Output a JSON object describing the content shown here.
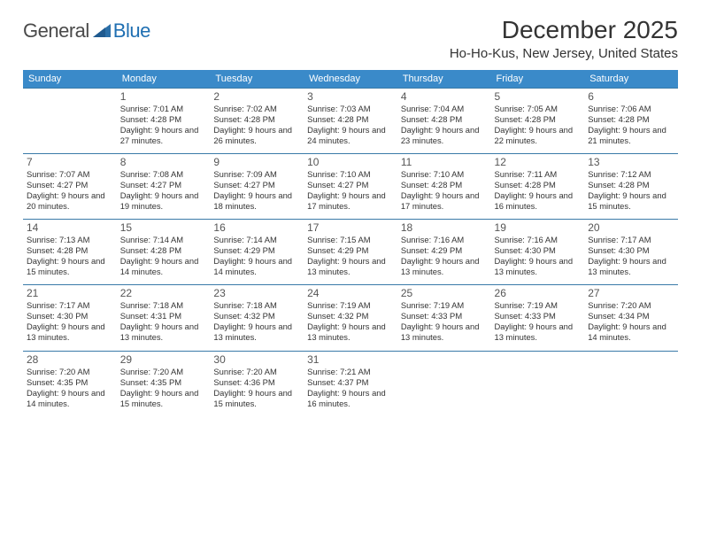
{
  "logo": {
    "word1": "General",
    "word2": "Blue"
  },
  "title": "December 2025",
  "location": "Ho-Ho-Kus, New Jersey, United States",
  "day_headers": [
    "Sunday",
    "Monday",
    "Tuesday",
    "Wednesday",
    "Thursday",
    "Friday",
    "Saturday"
  ],
  "colors": {
    "header_bg": "#3a8ac9",
    "header_text": "#ffffff",
    "border": "#3a7aa8",
    "logo_gray": "#4a4a4a",
    "logo_blue": "#1f6fb2",
    "arrow_fill": "#2b6fa8"
  },
  "weeks": [
    [
      null,
      {
        "n": "1",
        "sr": "7:01 AM",
        "ss": "4:28 PM",
        "dl": "9 hours and 27 minutes."
      },
      {
        "n": "2",
        "sr": "7:02 AM",
        "ss": "4:28 PM",
        "dl": "9 hours and 26 minutes."
      },
      {
        "n": "3",
        "sr": "7:03 AM",
        "ss": "4:28 PM",
        "dl": "9 hours and 24 minutes."
      },
      {
        "n": "4",
        "sr": "7:04 AM",
        "ss": "4:28 PM",
        "dl": "9 hours and 23 minutes."
      },
      {
        "n": "5",
        "sr": "7:05 AM",
        "ss": "4:28 PM",
        "dl": "9 hours and 22 minutes."
      },
      {
        "n": "6",
        "sr": "7:06 AM",
        "ss": "4:28 PM",
        "dl": "9 hours and 21 minutes."
      }
    ],
    [
      {
        "n": "7",
        "sr": "7:07 AM",
        "ss": "4:27 PM",
        "dl": "9 hours and 20 minutes."
      },
      {
        "n": "8",
        "sr": "7:08 AM",
        "ss": "4:27 PM",
        "dl": "9 hours and 19 minutes."
      },
      {
        "n": "9",
        "sr": "7:09 AM",
        "ss": "4:27 PM",
        "dl": "9 hours and 18 minutes."
      },
      {
        "n": "10",
        "sr": "7:10 AM",
        "ss": "4:27 PM",
        "dl": "9 hours and 17 minutes."
      },
      {
        "n": "11",
        "sr": "7:10 AM",
        "ss": "4:28 PM",
        "dl": "9 hours and 17 minutes."
      },
      {
        "n": "12",
        "sr": "7:11 AM",
        "ss": "4:28 PM",
        "dl": "9 hours and 16 minutes."
      },
      {
        "n": "13",
        "sr": "7:12 AM",
        "ss": "4:28 PM",
        "dl": "9 hours and 15 minutes."
      }
    ],
    [
      {
        "n": "14",
        "sr": "7:13 AM",
        "ss": "4:28 PM",
        "dl": "9 hours and 15 minutes."
      },
      {
        "n": "15",
        "sr": "7:14 AM",
        "ss": "4:28 PM",
        "dl": "9 hours and 14 minutes."
      },
      {
        "n": "16",
        "sr": "7:14 AM",
        "ss": "4:29 PM",
        "dl": "9 hours and 14 minutes."
      },
      {
        "n": "17",
        "sr": "7:15 AM",
        "ss": "4:29 PM",
        "dl": "9 hours and 13 minutes."
      },
      {
        "n": "18",
        "sr": "7:16 AM",
        "ss": "4:29 PM",
        "dl": "9 hours and 13 minutes."
      },
      {
        "n": "19",
        "sr": "7:16 AM",
        "ss": "4:30 PM",
        "dl": "9 hours and 13 minutes."
      },
      {
        "n": "20",
        "sr": "7:17 AM",
        "ss": "4:30 PM",
        "dl": "9 hours and 13 minutes."
      }
    ],
    [
      {
        "n": "21",
        "sr": "7:17 AM",
        "ss": "4:30 PM",
        "dl": "9 hours and 13 minutes."
      },
      {
        "n": "22",
        "sr": "7:18 AM",
        "ss": "4:31 PM",
        "dl": "9 hours and 13 minutes."
      },
      {
        "n": "23",
        "sr": "7:18 AM",
        "ss": "4:32 PM",
        "dl": "9 hours and 13 minutes."
      },
      {
        "n": "24",
        "sr": "7:19 AM",
        "ss": "4:32 PM",
        "dl": "9 hours and 13 minutes."
      },
      {
        "n": "25",
        "sr": "7:19 AM",
        "ss": "4:33 PM",
        "dl": "9 hours and 13 minutes."
      },
      {
        "n": "26",
        "sr": "7:19 AM",
        "ss": "4:33 PM",
        "dl": "9 hours and 13 minutes."
      },
      {
        "n": "27",
        "sr": "7:20 AM",
        "ss": "4:34 PM",
        "dl": "9 hours and 14 minutes."
      }
    ],
    [
      {
        "n": "28",
        "sr": "7:20 AM",
        "ss": "4:35 PM",
        "dl": "9 hours and 14 minutes."
      },
      {
        "n": "29",
        "sr": "7:20 AM",
        "ss": "4:35 PM",
        "dl": "9 hours and 15 minutes."
      },
      {
        "n": "30",
        "sr": "7:20 AM",
        "ss": "4:36 PM",
        "dl": "9 hours and 15 minutes."
      },
      {
        "n": "31",
        "sr": "7:21 AM",
        "ss": "4:37 PM",
        "dl": "9 hours and 16 minutes."
      },
      null,
      null,
      null
    ]
  ],
  "labels": {
    "sunrise": "Sunrise:",
    "sunset": "Sunset:",
    "daylight": "Daylight:"
  }
}
